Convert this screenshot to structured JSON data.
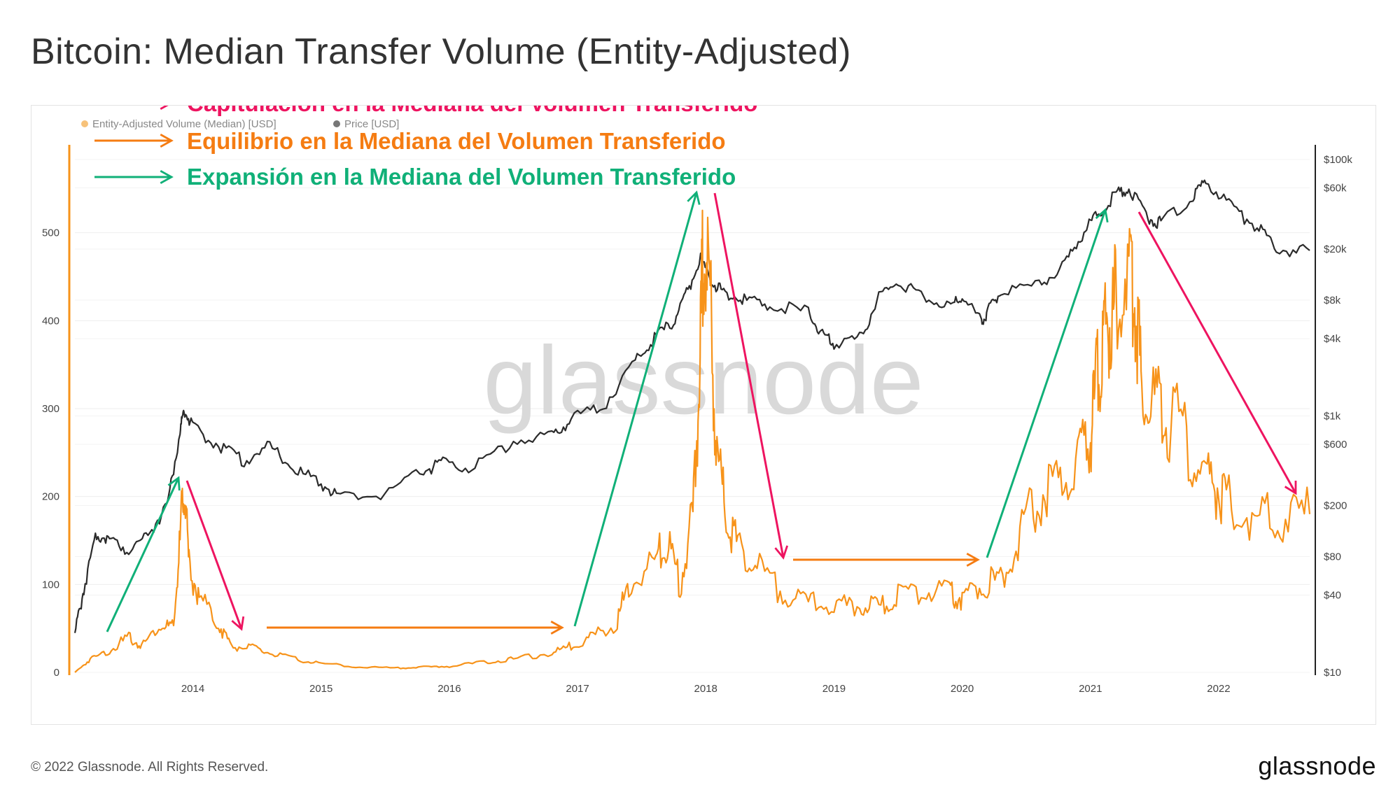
{
  "title": "Bitcoin: Median Transfer Volume (Entity-Adjusted)",
  "footer": {
    "copyright": "© 2022 Glassnode. All Rights Reserved.",
    "logo": "glassnode"
  },
  "watermark": "glassnode",
  "annotations": [
    {
      "text": "Capitulación en la Mediana del Volumen Transferido",
      "color": "#ee1460"
    },
    {
      "text": "Equilibrio en la Mediana del Volumen Transferido",
      "color": "#f57c12"
    },
    {
      "text": "Expansión en la Mediana del Volumen Transferido",
      "color": "#10b078"
    }
  ],
  "colors": {
    "volume": "#f7931a",
    "price": "#2b2b2b",
    "capitulation": "#ee1460",
    "equilibrium": "#f57c12",
    "expansion": "#10b078",
    "grid": "#eeeeee"
  },
  "chart_data": {
    "type": "line",
    "title": "Bitcoin: Median Transfer Volume (Entity-Adjusted)",
    "legend": [
      "Entity-Adjusted Volume (Median) [USD]",
      "Price [USD]"
    ],
    "legend_position": "top-left",
    "grid": true,
    "x_ticks": [
      "2014",
      "2015",
      "2016",
      "2017",
      "2018",
      "2019",
      "2020",
      "2021",
      "2022"
    ],
    "xlim": [
      2013.08,
      2022.71
    ],
    "left_axis": {
      "ylim": [
        0,
        600
      ],
      "ticks": [
        "0",
        "100",
        "200",
        "300",
        "400",
        "500"
      ],
      "tick_values": [
        0,
        100,
        200,
        300,
        400,
        500
      ]
    },
    "right_axis": {
      "scale": "log",
      "ylim": [
        10,
        130000
      ],
      "ticks": [
        "$10",
        "$40",
        "$80",
        "$200",
        "$600",
        "$1k",
        "$4k",
        "$8k",
        "$20k",
        "$60k",
        "$100k"
      ],
      "tick_values": [
        10,
        40,
        80,
        200,
        600,
        1000,
        4000,
        8000,
        20000,
        60000,
        100000
      ]
    },
    "series": [
      {
        "name": "Entity-Adjusted Volume (Median) [USD]",
        "axis": "left",
        "x": [
          2013.08,
          2013.2,
          2013.35,
          2013.5,
          2013.6,
          2013.75,
          2013.85,
          2013.9,
          2013.93,
          2013.97,
          2014.05,
          2014.2,
          2014.3,
          2014.45,
          2014.6,
          2014.8,
          2015.0,
          2015.3,
          2015.6,
          2015.8,
          2016.0,
          2016.3,
          2016.5,
          2016.8,
          2016.95,
          2017.1,
          2017.3,
          2017.4,
          2017.6,
          2017.7,
          2017.8,
          2017.9,
          2017.95,
          2017.98,
          2018.03,
          2018.08,
          2018.15,
          2018.25,
          2018.4,
          2018.6,
          2018.8,
          2019.0,
          2019.2,
          2019.35,
          2019.5,
          2019.7,
          2019.9,
          2020.0,
          2020.15,
          2020.3,
          2020.45,
          2020.6,
          2020.75,
          2020.9,
          2021.0,
          2021.05,
          2021.1,
          2021.15,
          2021.2,
          2021.3,
          2021.35,
          2021.4,
          2021.5,
          2021.6,
          2021.75,
          2021.9,
          2022.0,
          2022.1,
          2022.3,
          2022.5,
          2022.71
        ],
        "y": [
          0,
          15,
          25,
          40,
          30,
          55,
          50,
          150,
          218,
          120,
          85,
          55,
          30,
          28,
          22,
          15,
          10,
          6,
          5,
          6,
          7,
          12,
          15,
          22,
          30,
          40,
          55,
          100,
          125,
          150,
          100,
          180,
          320,
          495,
          440,
          250,
          190,
          140,
          120,
          90,
          80,
          75,
          75,
          75,
          85,
          95,
          90,
          85,
          100,
          105,
          160,
          200,
          215,
          240,
          270,
          330,
          385,
          395,
          420,
          460,
          430,
          320,
          310,
          290,
          270,
          220,
          210,
          190,
          175,
          180,
          180
        ]
      },
      {
        "name": "Price [USD]",
        "axis": "right",
        "x": [
          2013.08,
          2013.15,
          2013.25,
          2013.35,
          2013.5,
          2013.65,
          2013.8,
          2013.9,
          2013.93,
          2014.0,
          2014.2,
          2014.4,
          2014.6,
          2014.8,
          2015.0,
          2015.15,
          2015.5,
          2015.8,
          2015.95,
          2016.2,
          2016.5,
          2016.8,
          2016.95,
          2017.2,
          2017.45,
          2017.6,
          2017.75,
          2017.85,
          2017.96,
          2018.05,
          2018.15,
          2018.3,
          2018.5,
          2018.8,
          2018.9,
          2019.0,
          2019.2,
          2019.35,
          2019.5,
          2019.7,
          2019.9,
          2020.0,
          2020.15,
          2020.2,
          2020.3,
          2020.6,
          2020.8,
          2020.95,
          2021.05,
          2021.2,
          2021.3,
          2021.45,
          2021.55,
          2021.8,
          2021.9,
          2022.1,
          2022.3,
          2022.45,
          2022.71
        ],
        "y": [
          20,
          45,
          120,
          110,
          90,
          120,
          200,
          750,
          1150,
          800,
          600,
          450,
          580,
          380,
          300,
          230,
          250,
          380,
          430,
          400,
          650,
          700,
          950,
          1200,
          2700,
          4000,
          5500,
          9000,
          17000,
          11000,
          9000,
          8000,
          7500,
          6400,
          4300,
          3700,
          4000,
          8500,
          11000,
          8500,
          7200,
          8500,
          5500,
          6500,
          9500,
          10500,
          15000,
          28000,
          37000,
          55000,
          60000,
          35000,
          32000,
          50000,
          68000,
          42000,
          30000,
          20000,
          19500
        ]
      }
    ]
  }
}
